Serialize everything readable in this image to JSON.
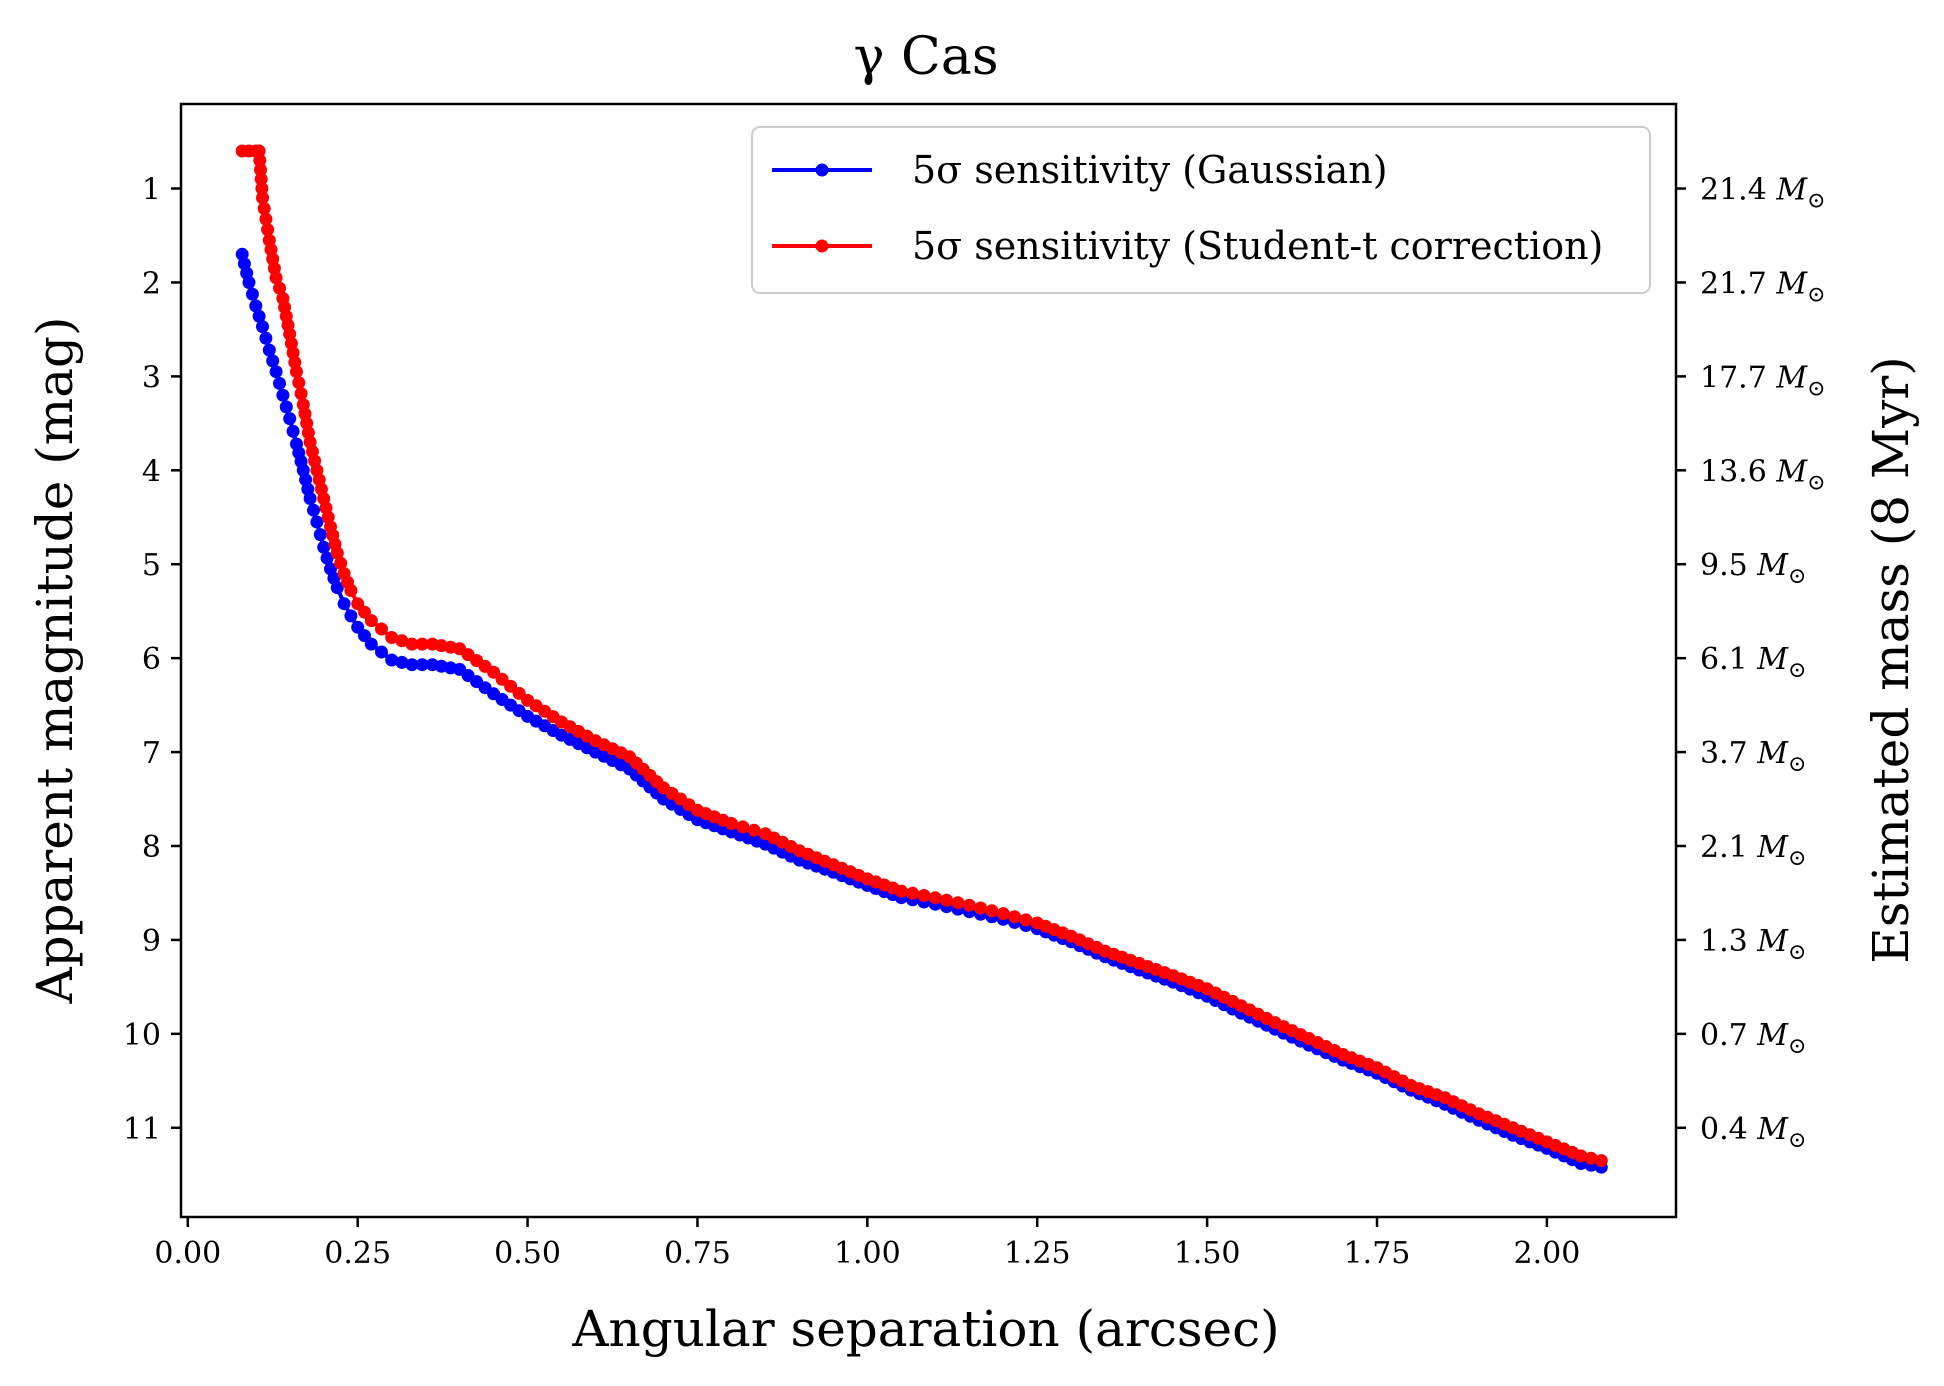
{
  "chart_data": {
    "type": "line",
    "title": "γ Cas",
    "xlabel": "Angular separation (arcsec)",
    "ylabel": "Apparent magnitude (mag)",
    "y2label": "Estimated mass (8 Myr)",
    "xlim": [
      -0.01,
      2.19
    ],
    "ylim": [
      11.95,
      0.1
    ],
    "y_inverted": true,
    "grid": false,
    "legend_position": "top-right",
    "x_ticks": [
      0.0,
      0.25,
      0.5,
      0.75,
      1.0,
      1.25,
      1.5,
      1.75,
      2.0
    ],
    "x_tick_labels": [
      "0.00",
      "0.25",
      "0.50",
      "0.75",
      "1.00",
      "1.25",
      "1.50",
      "1.75",
      "2.00"
    ],
    "y_ticks": [
      1,
      2,
      3,
      4,
      5,
      6,
      7,
      8,
      9,
      10,
      11
    ],
    "y_tick_labels": [
      "1",
      "2",
      "3",
      "4",
      "5",
      "6",
      "7",
      "8",
      "9",
      "10",
      "11"
    ],
    "y2_ticks": [
      1,
      2,
      3,
      4,
      5,
      6,
      7,
      8,
      9,
      10,
      11
    ],
    "y2_tick_values": [
      "21.4",
      "21.7",
      "17.7",
      "13.6",
      "9.5",
      "6.1",
      "3.7",
      "2.1",
      "1.3",
      "0.7",
      "0.4"
    ],
    "y2_unit": "M",
    "y2_unit_symbol": "⊙",
    "series": [
      {
        "name": "5σ sensitivity (Gaussian)",
        "color": "#0000ff",
        "x": [
          0.08,
          0.09,
          0.1,
          0.11,
          0.12,
          0.13,
          0.14,
          0.15,
          0.16,
          0.17,
          0.18,
          0.19,
          0.2,
          0.21,
          0.22,
          0.23,
          0.24,
          0.25,
          0.27,
          0.3,
          0.33,
          0.36,
          0.4,
          0.45,
          0.5,
          0.55,
          0.6,
          0.65,
          0.7,
          0.75,
          0.8,
          0.85,
          0.9,
          0.95,
          1.0,
          1.05,
          1.1,
          1.15,
          1.2,
          1.25,
          1.3,
          1.35,
          1.4,
          1.45,
          1.5,
          1.55,
          1.6,
          1.65,
          1.7,
          1.75,
          1.8,
          1.85,
          1.9,
          1.95,
          2.0,
          2.05,
          2.08
        ],
        "y": [
          1.7,
          2.0,
          2.25,
          2.47,
          2.72,
          2.95,
          3.2,
          3.45,
          3.72,
          4.0,
          4.3,
          4.55,
          4.82,
          5.05,
          5.25,
          5.42,
          5.55,
          5.67,
          5.85,
          6.02,
          6.07,
          6.07,
          6.12,
          6.38,
          6.62,
          6.82,
          7.0,
          7.18,
          7.5,
          7.72,
          7.85,
          7.98,
          8.15,
          8.28,
          8.42,
          8.55,
          8.62,
          8.7,
          8.78,
          8.88,
          9.02,
          9.18,
          9.32,
          9.45,
          9.6,
          9.78,
          9.95,
          10.12,
          10.28,
          10.42,
          10.6,
          10.75,
          10.92,
          11.08,
          11.22,
          11.38,
          11.42
        ]
      },
      {
        "name": "5σ sensitivity (Student-t correction)",
        "color": "#ff0000",
        "x": [
          0.08,
          0.09,
          0.1,
          0.105,
          0.11,
          0.12,
          0.13,
          0.14,
          0.15,
          0.16,
          0.17,
          0.18,
          0.19,
          0.2,
          0.21,
          0.22,
          0.23,
          0.24,
          0.25,
          0.27,
          0.3,
          0.33,
          0.36,
          0.4,
          0.45,
          0.5,
          0.55,
          0.6,
          0.65,
          0.7,
          0.75,
          0.8,
          0.85,
          0.9,
          0.95,
          1.0,
          1.05,
          1.1,
          1.15,
          1.2,
          1.25,
          1.3,
          1.35,
          1.4,
          1.45,
          1.5,
          1.55,
          1.6,
          1.65,
          1.7,
          1.75,
          1.8,
          1.85,
          1.9,
          1.95,
          2.0,
          2.05,
          2.08
        ],
        "y": [
          0.6,
          0.6,
          0.6,
          0.6,
          1.1,
          1.55,
          1.95,
          2.17,
          2.55,
          2.95,
          3.3,
          3.7,
          4.0,
          4.3,
          4.6,
          4.88,
          5.1,
          5.28,
          5.42,
          5.6,
          5.78,
          5.85,
          5.85,
          5.9,
          6.15,
          6.45,
          6.68,
          6.88,
          7.05,
          7.38,
          7.62,
          7.76,
          7.87,
          8.05,
          8.2,
          8.35,
          8.48,
          8.55,
          8.63,
          8.72,
          8.82,
          8.96,
          9.12,
          9.25,
          9.38,
          9.52,
          9.7,
          9.88,
          10.05,
          10.22,
          10.36,
          10.55,
          10.68,
          10.85,
          11.0,
          11.15,
          11.3,
          11.35
        ]
      }
    ]
  }
}
